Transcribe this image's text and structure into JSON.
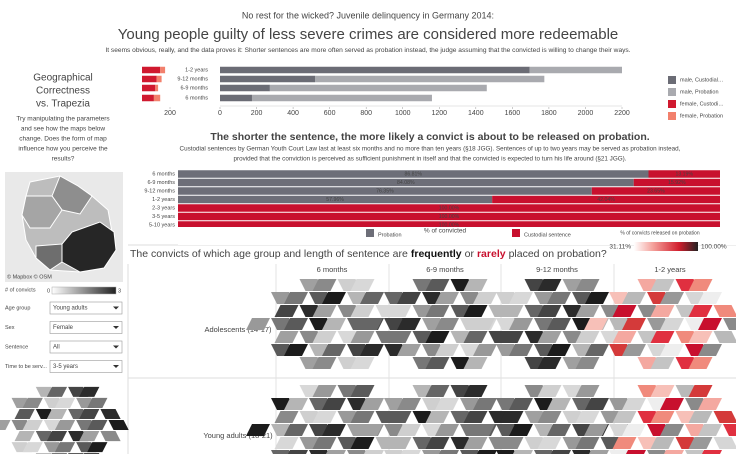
{
  "header": {
    "kicker": "No rest for the wicked? Juvenile delinquency in Germany 2014:",
    "title": "Young people guilty of less severe crimes are considered more redeemable",
    "description": "It seems obvious, really, and the data proves it: Shorter sentences are more often served as probation instead, the judge assuming that the convicted is willing to change their ways."
  },
  "sidebar": {
    "heading": [
      "Geographical",
      "Correctness",
      "vs. Trapezia"
    ],
    "instructions": [
      "Try manipulating the parameters",
      "and see how the maps below",
      "change. Does the form of map",
      "influence how you perceive the",
      "results?"
    ],
    "map_credit": "© Mapbox © OSM",
    "color_scale": {
      "title": "# of convicts",
      "min": 0,
      "max": 3
    },
    "filters": [
      {
        "label": "Age group",
        "value": "Young adults"
      },
      {
        "label": "Sex",
        "value": "Female"
      },
      {
        "label": "Sentence",
        "value": "All"
      },
      {
        "label": "Time to be serv...",
        "value": "3-5 years"
      }
    ]
  },
  "chart_data": [
    {
      "type": "bar",
      "orientation": "horizontal",
      "stacked": true,
      "categories": [
        "1-2 years",
        "9-12 months",
        "6-9 months",
        "6 months"
      ],
      "series": [
        {
          "name": "male, Custodial…",
          "color": "#6b6c75",
          "values": [
            1695,
            520,
            273,
            175
          ]
        },
        {
          "name": "male, Probation",
          "color": "#a9aaaf",
          "values": [
            505,
            1255,
            1187,
            985
          ]
        }
      ],
      "xlim": [
        0,
        2200
      ],
      "xticks": [
        0,
        200,
        400,
        600,
        800,
        1000,
        1200,
        1400,
        1600,
        1800,
        2000,
        2200
      ]
    },
    {
      "type": "bar",
      "orientation": "horizontal",
      "stacked": true,
      "categories": [
        "1-2 years",
        "9-12 months",
        "6-9 months",
        "6 months"
      ],
      "series": [
        {
          "name": "female, Custodi…",
          "color": "#d0192f",
          "values": [
            130,
            105,
            95,
            85
          ]
        },
        {
          "name": "female, Probation",
          "color": "#f2806c",
          "values": [
            35,
            35,
            20,
            45
          ]
        }
      ],
      "xlim": [
        0,
        200
      ],
      "xticks": [
        200
      ]
    },
    {
      "type": "bar",
      "orientation": "horizontal",
      "stacked": true,
      "title": "The shorter the sentence, the more likely a convict is about to be released on probation.",
      "subtitle": [
        "Custodial sentences by German Youth Court Law last at least six months and no more than ten years (§18 JGG). Sentences of up to two years may be served as probation instead,",
        "provided that the conviction is perceived as sufficient punishment in itself and that the convicted is expected to turn his life around (§21 JGG)."
      ],
      "categories": [
        "6 months",
        "6-9 months",
        "9-12 months",
        "1-2 years",
        "2-3 years",
        "3-5 years",
        "5-10 years"
      ],
      "series": [
        {
          "name": "Probation",
          "color": "#6d6e78",
          "values": [
            86.81,
            84.08,
            76.35,
            57.96,
            0,
            0,
            0
          ],
          "value_labels": [
            "86.81%",
            "84.08%",
            "76.35%",
            "57.96%",
            null,
            null,
            null
          ]
        },
        {
          "name": "Custodial sentence",
          "color": "#c8102e",
          "values": [
            13.19,
            15.92,
            23.65,
            42.04,
            100,
            100,
            100
          ],
          "value_labels": [
            "13.19%",
            "15.92%",
            "23.65%",
            "42.04%",
            "100.00%",
            "100.00%",
            "100.00%"
          ]
        }
      ],
      "xlim": [
        0,
        100
      ],
      "xlabel": "% of convicted",
      "color_legend": {
        "title": "% of convicts released on probation",
        "min": {
          "value": 31.11,
          "label": "31.11%"
        },
        "max": {
          "value": 100,
          "label": "100.00%"
        }
      }
    }
  ],
  "grid_section": {
    "question": [
      "The convicts of which age group and length of sentence are",
      "frequently",
      "or",
      "rarely",
      "placed on probation?"
    ],
    "columns": [
      "6 months",
      "6-9 months",
      "9-12 months",
      "1-2 years"
    ],
    "rows": [
      "Adolescents (14-17)",
      "Young adults (18-21)"
    ]
  }
}
